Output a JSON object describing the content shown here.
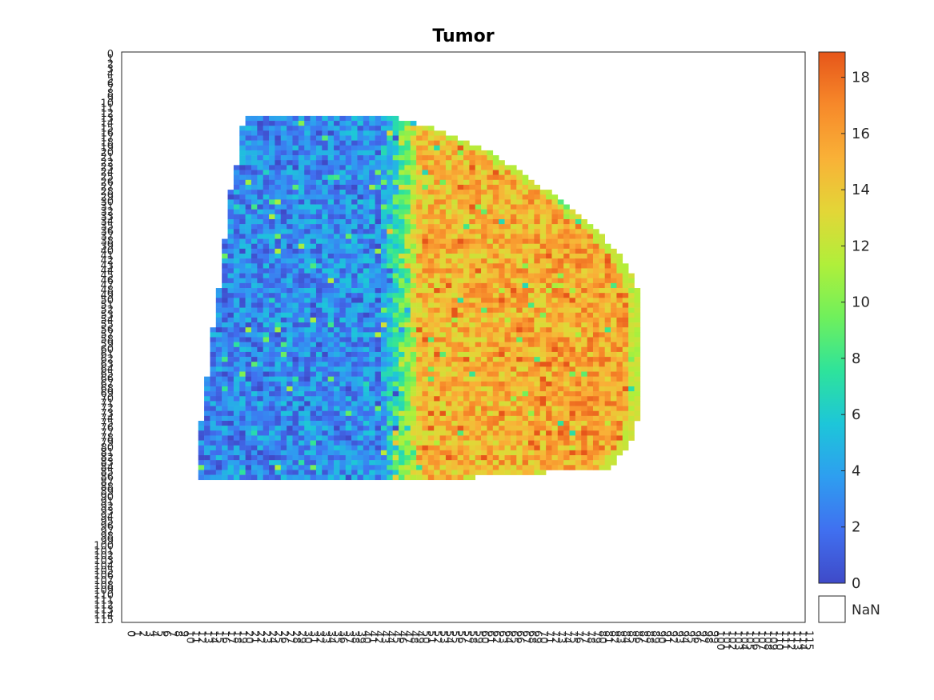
{
  "chart_data": {
    "type": "heatmap",
    "title": "Tumor",
    "xlabel": "",
    "ylabel": "",
    "x_ticks": {
      "min": 0,
      "max": 115,
      "step": 1
    },
    "y_ticks": {
      "min": 0,
      "max": 115,
      "step": 1
    },
    "xlim": [
      0,
      115
    ],
    "ylim": [
      0,
      115
    ],
    "colorbar": {
      "min": 0,
      "max": 18.9,
      "ticks": [
        "0",
        "2",
        "4",
        "6",
        "8",
        "10",
        "12",
        "14",
        "16",
        "18"
      ],
      "colormap": "turbo",
      "colors": [
        "#3f4ac8",
        "#4070f0",
        "#2e9ef0",
        "#1dc6d9",
        "#2ee39b",
        "#6ff05c",
        "#b0ef3a",
        "#e3d637",
        "#f9b137",
        "#f7892a",
        "#e6561a"
      ],
      "missing_label": "NaN",
      "missing_color": "#ffffff"
    },
    "grid": false,
    "region": {
      "description_rows": [
        {
          "y": 13,
          "x_start": 21,
          "x_end": 46
        },
        {
          "y": 15,
          "x_start": 20,
          "x_end": 52
        },
        {
          "y": 20,
          "x_start": 20,
          "x_end": 62
        },
        {
          "y": 25,
          "x_start": 19,
          "x_end": 68
        },
        {
          "y": 30,
          "x_start": 18,
          "x_end": 74
        },
        {
          "y": 35,
          "x_start": 18,
          "x_end": 79
        },
        {
          "y": 40,
          "x_start": 17,
          "x_end": 83
        },
        {
          "y": 45,
          "x_start": 17,
          "x_end": 86
        },
        {
          "y": 50,
          "x_start": 16,
          "x_end": 87
        },
        {
          "y": 60,
          "x_start": 15,
          "x_end": 87
        },
        {
          "y": 70,
          "x_start": 14,
          "x_end": 87
        },
        {
          "y": 78,
          "x_start": 13,
          "x_end": 86
        },
        {
          "y": 84,
          "x_start": 13,
          "x_end": 82
        },
        {
          "y": 86,
          "x_start": 13,
          "x_end": 59
        }
      ],
      "gradient": {
        "low_value_side": "left",
        "high_value_side": "right",
        "boundary_x": 46
      }
    }
  }
}
